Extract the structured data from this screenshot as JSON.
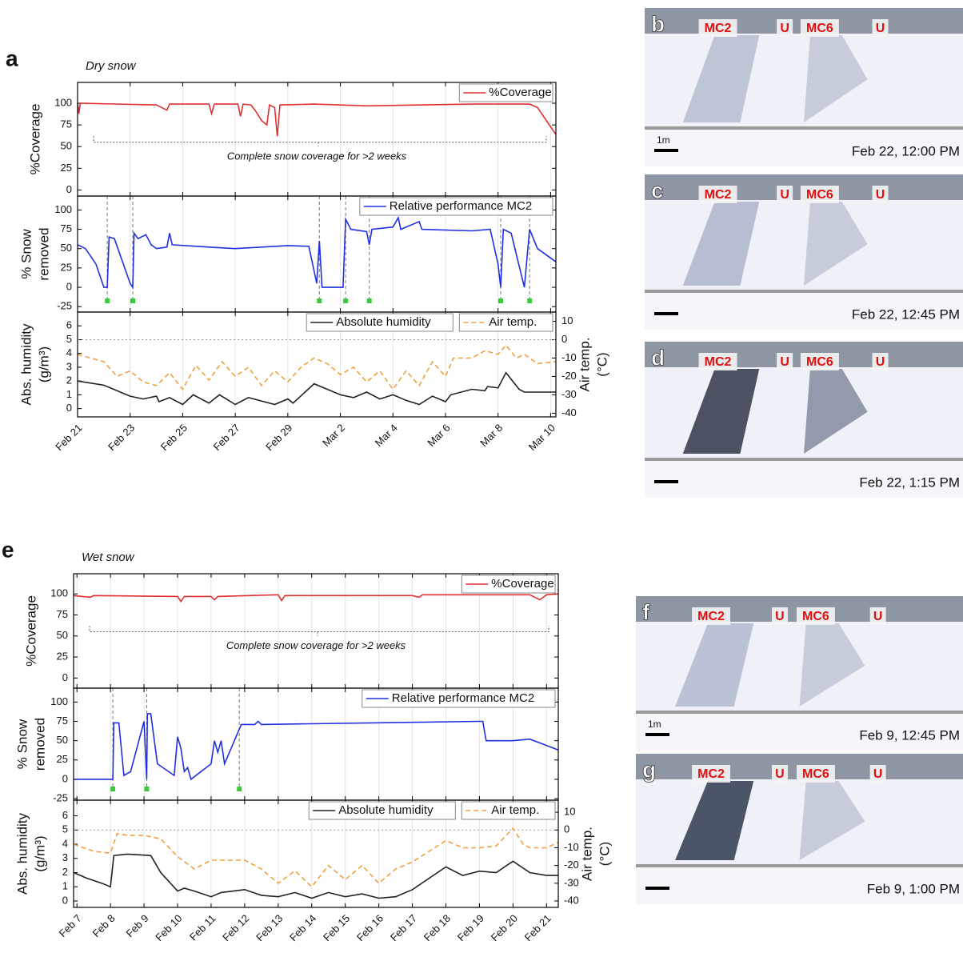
{
  "chart_data": [
    {
      "type": "line",
      "panel_label": "a",
      "subtitle": "Dry snow",
      "ylabel": [
        "%Coverage"
      ],
      "xlim": [
        0,
        18.2
      ],
      "ylim": [
        -7,
        124
      ],
      "yticks": [
        0,
        25,
        50,
        75,
        100
      ],
      "grid": "x",
      "legend": "upper right",
      "annotation": "Complete snow coverage for >2 weeks",
      "series": [
        {
          "name": "%Coverage",
          "color": "#e03030",
          "x": [
            0,
            0.05,
            0.1,
            3,
            3.4,
            3.5,
            5,
            5.1,
            5.2,
            6.1,
            6.2,
            6.3,
            6.6,
            6.8,
            7,
            7.2,
            7.3,
            7.5,
            7.6,
            7.7,
            9,
            11,
            15,
            17.2,
            17.5,
            18.2
          ],
          "values": [
            100,
            88,
            100,
            98,
            92,
            99,
            99,
            88,
            99,
            99,
            85,
            99,
            98,
            90,
            80,
            75,
            98,
            95,
            62,
            98,
            99,
            97,
            99,
            99,
            95,
            64
          ]
        }
      ]
    },
    {
      "type": "line",
      "ylabel": [
        "% Snow",
        "removed"
      ],
      "xlim": [
        0,
        18.2
      ],
      "ylim": [
        -32,
        118
      ],
      "yticks": [
        -25,
        0,
        25,
        50,
        75,
        100
      ],
      "grid": "x",
      "legend": "upper right",
      "events": [
        1.13,
        2.1,
        9.2,
        10.2,
        11.1,
        16.1,
        17.2
      ],
      "series": [
        {
          "name": "Relative performance MC2",
          "color": "#2030e0",
          "x": [
            0,
            0.3,
            0.7,
            1.0,
            1.13,
            1.2,
            1.4,
            2.0,
            2.1,
            2.15,
            2.3,
            2.6,
            2.8,
            3.0,
            3.4,
            3.5,
            3.6,
            5,
            6,
            8,
            8.8,
            9.1,
            9.2,
            9.3,
            10.1,
            10.2,
            10.4,
            11,
            11.1,
            11.2,
            12,
            12.2,
            12.3,
            13,
            13.1,
            15,
            15.7,
            16,
            16.1,
            16.2,
            16.5,
            17.0,
            17.2,
            17.5,
            18.2
          ],
          "values": [
            55,
            50,
            30,
            0,
            0,
            65,
            63,
            5,
            0,
            70,
            63,
            68,
            55,
            50,
            52,
            70,
            55,
            52,
            50,
            54,
            53,
            5,
            60,
            0,
            0,
            88,
            75,
            72,
            55,
            75,
            78,
            90,
            75,
            85,
            75,
            73,
            75,
            30,
            0,
            75,
            70,
            0,
            75,
            50,
            33
          ]
        }
      ]
    },
    {
      "type": "line",
      "ylabel": [
        "Abs. humidity",
        "(g/m³)"
      ],
      "y2label": [
        "Air temp.",
        "(°C)"
      ],
      "xlim": [
        0,
        18.2
      ],
      "ylim": [
        -0.6,
        7
      ],
      "yticks": [
        0,
        1,
        2,
        3,
        4,
        5,
        6
      ],
      "y2lim": [
        -42,
        15
      ],
      "y2ticks": [
        -40,
        -30,
        -20,
        -10,
        0,
        10
      ],
      "grid": "x",
      "legend": "upper right",
      "reference_line": {
        "axis": "y2",
        "value": 0
      },
      "xticks": [
        {
          "value": 0,
          "label": "Feb 21"
        },
        {
          "value": 2,
          "label": "Feb 23"
        },
        {
          "value": 4,
          "label": "Feb 25"
        },
        {
          "value": 6,
          "label": "Feb 27"
        },
        {
          "value": 8,
          "label": "Feb 29"
        },
        {
          "value": 10,
          "label": "Mar 2"
        },
        {
          "value": 12,
          "label": "Mar 4"
        },
        {
          "value": 14,
          "label": "Mar 6"
        },
        {
          "value": 16,
          "label": "Mar 8"
        },
        {
          "value": 18,
          "label": "Mar 10"
        }
      ],
      "series": [
        {
          "name": "Absolute humidity",
          "color": "#222222",
          "style": "solid",
          "x": [
            0,
            1,
            2,
            2.5,
            3,
            3.1,
            3.5,
            4,
            4.4,
            5,
            5.4,
            6,
            6.5,
            7.5,
            8,
            8.2,
            9,
            10,
            10.5,
            11,
            11.5,
            12,
            12.5,
            13,
            13.5,
            14,
            14.2,
            15,
            15.5,
            15.6,
            16,
            16.3,
            16.8,
            17,
            18.2
          ],
          "values": [
            2,
            1.7,
            0.9,
            0.7,
            0.9,
            0.5,
            0.8,
            0.3,
            1,
            0.4,
            1,
            0.3,
            0.8,
            0.3,
            0.7,
            0.4,
            1.8,
            1,
            0.8,
            1.2,
            0.7,
            1,
            0.6,
            0.3,
            0.9,
            0.5,
            1,
            1.4,
            1.3,
            1.6,
            1.5,
            2.6,
            1.4,
            1.2,
            1.2
          ]
        },
        {
          "name": "Air temp.",
          "color": "#f0a040",
          "style": "dashed",
          "axis": "y2",
          "x": [
            0,
            0.5,
            1,
            1.5,
            2,
            2.5,
            3,
            3.5,
            4,
            4.5,
            5,
            5.5,
            6,
            6.5,
            7,
            7.5,
            8,
            8.5,
            9,
            9.5,
            10,
            10.5,
            11,
            11.5,
            12,
            12.5,
            13,
            13.5,
            14,
            14.3,
            15,
            15.5,
            16,
            16.3,
            16.7,
            17,
            17.5,
            18.2
          ],
          "values": [
            -8,
            -10,
            -12,
            -20,
            -17,
            -23,
            -25,
            -18,
            -27,
            -14,
            -22,
            -12,
            -20,
            -15,
            -25,
            -17,
            -23,
            -15,
            -10,
            -13,
            -19,
            -15,
            -23,
            -17,
            -27,
            -17,
            -25,
            -12,
            -20,
            -10,
            -10,
            -6,
            -8,
            -3,
            -10,
            -8,
            -13,
            -12
          ]
        }
      ]
    },
    {
      "type": "line",
      "panel_label": "e",
      "subtitle": "Wet snow",
      "ylabel": [
        "%Coverage"
      ],
      "xlim": [
        -0.1,
        14.35
      ],
      "ylim": [
        -12,
        124
      ],
      "yticks": [
        0,
        25,
        50,
        75,
        100
      ],
      "grid": "x",
      "legend": "upper right",
      "annotation": "Complete snow coverage for >2 weeks",
      "series": [
        {
          "name": "%Coverage",
          "color": "#e03030",
          "x": [
            -0.1,
            0.4,
            0.5,
            3.0,
            3.1,
            3.2,
            4,
            4.1,
            4.2,
            6,
            6.1,
            6.2,
            10,
            10.2,
            10.3,
            13.5,
            13.8,
            14,
            14.35
          ],
          "values": [
            98,
            96,
            98,
            97,
            91,
            97,
            97,
            93,
            97,
            99,
            92,
            98,
            98,
            96,
            99,
            99,
            93,
            99,
            100
          ]
        }
      ]
    },
    {
      "type": "line",
      "ylabel": [
        "% Snow",
        "removed"
      ],
      "xlim": [
        -0.1,
        14.35
      ],
      "ylim": [
        -27,
        118
      ],
      "yticks": [
        -25,
        0,
        25,
        50,
        75,
        100
      ],
      "grid": "x",
      "legend": "upper right",
      "events": [
        1.07,
        2.08,
        4.84
      ],
      "series": [
        {
          "name": "Relative performance MC2",
          "color": "#2030e0",
          "x": [
            -0.1,
            1.0,
            1.07,
            1.1,
            1.25,
            1.4,
            1.6,
            2.0,
            2.08,
            2.1,
            2.2,
            2.4,
            2.9,
            3.0,
            3.1,
            3.2,
            3.3,
            3.4,
            4.0,
            4.1,
            4.2,
            4.3,
            4.4,
            4.84,
            4.9,
            5.3,
            5.4,
            5.5,
            12,
            12.1,
            12.2,
            13,
            13.5,
            14.35
          ],
          "values": [
            0,
            0,
            0,
            73,
            73,
            5,
            10,
            75,
            0,
            85,
            85,
            20,
            5,
            55,
            40,
            10,
            15,
            0,
            20,
            50,
            35,
            50,
            20,
            65,
            71,
            71,
            75,
            71,
            75,
            75,
            50,
            50,
            52,
            38
          ]
        }
      ]
    },
    {
      "type": "line",
      "ylabel": [
        "Abs. humidity",
        "(g/m³)"
      ],
      "y2label": [
        "Air temp.",
        "(°C)"
      ],
      "xlim": [
        -0.1,
        14.35
      ],
      "ylim": [
        -0.45,
        7.1
      ],
      "yticks": [
        0,
        1,
        2,
        3,
        4,
        5,
        6
      ],
      "y2lim": [
        -43.6,
        16.8
      ],
      "y2ticks": [
        -40,
        -30,
        -20,
        -10,
        0,
        10
      ],
      "grid": "x",
      "legend": "upper right",
      "reference_line": {
        "axis": "y2",
        "value": 0
      },
      "xticks": [
        {
          "value": 0,
          "label": "Feb 7"
        },
        {
          "value": 1,
          "label": "Feb 8"
        },
        {
          "value": 2,
          "label": "Feb 9"
        },
        {
          "value": 3,
          "label": "Feb 10"
        },
        {
          "value": 4,
          "label": "Feb 11"
        },
        {
          "value": 5,
          "label": "Feb 12"
        },
        {
          "value": 6,
          "label": "Feb 13"
        },
        {
          "value": 7,
          "label": "Feb 14"
        },
        {
          "value": 8,
          "label": "Feb 15"
        },
        {
          "value": 9,
          "label": "Feb 16"
        },
        {
          "value": 10,
          "label": "Feb 17"
        },
        {
          "value": 11,
          "label": "Feb 18"
        },
        {
          "value": 12,
          "label": "Feb 19"
        },
        {
          "value": 13,
          "label": "Feb 20"
        },
        {
          "value": 14,
          "label": "Feb 21"
        }
      ],
      "series": [
        {
          "name": "Absolute humidity",
          "color": "#222222",
          "style": "solid",
          "x": [
            -0.1,
            0.3,
            0.8,
            1.0,
            1.1,
            1.5,
            2.2,
            2.3,
            2.5,
            3.0,
            3.2,
            3.5,
            4,
            4.3,
            5,
            5.5,
            6,
            6.5,
            7,
            7.5,
            8,
            8.5,
            9,
            9.5,
            10,
            11,
            11.5,
            12,
            12.5,
            13,
            13.5,
            14,
            14.35
          ],
          "values": [
            2,
            1.6,
            1.2,
            1.0,
            3.2,
            3.3,
            3.2,
            2.8,
            2,
            0.7,
            0.9,
            0.7,
            0.3,
            0.6,
            0.8,
            0.4,
            0.3,
            0.6,
            0.2,
            0.6,
            0.3,
            0.5,
            0.2,
            0.3,
            0.8,
            2.4,
            1.8,
            2.1,
            2,
            2.8,
            2,
            1.8,
            1.8
          ]
        },
        {
          "name": "Air temp.",
          "color": "#f0a040",
          "style": "dashed",
          "axis": "y2",
          "x": [
            -0.1,
            0.5,
            1,
            1.2,
            1.5,
            2,
            2.5,
            3,
            3.5,
            4,
            4.5,
            5,
            5.5,
            6,
            6.5,
            7,
            7.5,
            8,
            8.5,
            9,
            9.5,
            10,
            10.5,
            11,
            11.5,
            12,
            12.5,
            13,
            13.3,
            13.5,
            14,
            14.35
          ],
          "values": [
            -8,
            -12,
            -13,
            -2,
            -3,
            -3,
            -5,
            -15,
            -22,
            -17,
            -17,
            -17,
            -22,
            -30,
            -23,
            -32,
            -20,
            -28,
            -20,
            -30,
            -22,
            -18,
            -12,
            -6,
            -10,
            -10,
            -9,
            1,
            -8,
            -10,
            -10,
            -7
          ]
        }
      ]
    }
  ],
  "photos": [
    {
      "letter": "b",
      "labels": [
        "MC2",
        "U",
        "MC6",
        "U"
      ],
      "scale": "1m",
      "caption": "Feb 22, 12:00 PM"
    },
    {
      "letter": "c",
      "labels": [
        "MC2",
        "U",
        "MC6",
        "U"
      ],
      "caption": "Feb 22, 12:45 PM"
    },
    {
      "letter": "d",
      "labels": [
        "MC2",
        "U",
        "MC6",
        "U"
      ],
      "caption": "Feb 22, 1:15 PM"
    },
    {
      "letter": "f",
      "labels": [
        "MC2",
        "U",
        "MC6",
        "U"
      ],
      "scale": "1m",
      "caption": "Feb 9, 12:45 PM"
    },
    {
      "letter": "g",
      "labels": [
        "MC2",
        "U",
        "MC6",
        "U"
      ],
      "caption": "Feb 9, 1:00 PM"
    }
  ]
}
